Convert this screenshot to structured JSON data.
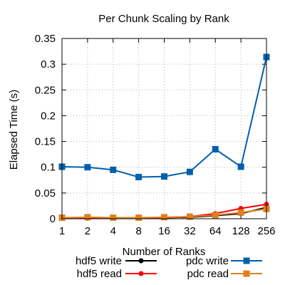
{
  "chart_data": {
    "type": "line",
    "title": "Per Chunk Scaling by Rank",
    "xlabel": "Number of Ranks",
    "ylabel": "Elapsed Time (s)",
    "x_scale": "log2",
    "categories": [
      "1",
      "2",
      "4",
      "8",
      "16",
      "32",
      "64",
      "128",
      "256"
    ],
    "x": [
      1,
      2,
      4,
      8,
      16,
      32,
      64,
      128,
      256
    ],
    "ylim": [
      0,
      0.35
    ],
    "yticks": [
      "0",
      "0.05",
      "0.1",
      "0.15",
      "0.2",
      "0.25",
      "0.3",
      "0.35"
    ],
    "ytick_values": [
      0,
      0.05,
      0.1,
      0.15,
      0.2,
      0.25,
      0.3,
      0.35
    ],
    "grid": true,
    "legend_position": "bottom",
    "series": [
      {
        "name": "hdf5 write",
        "color": "#000000",
        "marker": "circle",
        "values": [
          0.001,
          0.001,
          0.001,
          0.001,
          0.002,
          0.003,
          0.006,
          0.01,
          0.022
        ]
      },
      {
        "name": "hdf5 read",
        "color": "#ff0000",
        "marker": "circle",
        "values": [
          0.002,
          0.002,
          0.001,
          0.002,
          0.002,
          0.004,
          0.01,
          0.02,
          0.028
        ]
      },
      {
        "name": "pdc write",
        "color": "#0060ad",
        "marker": "square",
        "values": [
          0.101,
          0.1,
          0.095,
          0.081,
          0.082,
          0.091,
          0.135,
          0.101,
          0.314
        ]
      },
      {
        "name": "pdc read",
        "color": "#e08020",
        "marker": "square",
        "values": [
          0.002,
          0.003,
          0.002,
          0.002,
          0.003,
          0.004,
          0.007,
          0.012,
          0.019
        ]
      }
    ]
  }
}
